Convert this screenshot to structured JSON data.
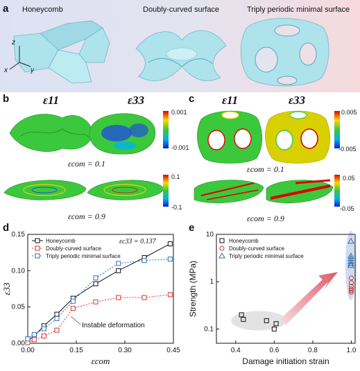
{
  "panel_a": {
    "label": "a",
    "titles": [
      "Honeycomb",
      "Doubly-curved surface",
      "Triply periodic minimal surface"
    ],
    "axis_labels": [
      "z",
      "x",
      "y"
    ]
  },
  "panel_b": {
    "label": "b",
    "eps11": "ε11",
    "eps33": "ε33",
    "colorbar_top": [
      "0.001",
      "-0.001"
    ],
    "colorbar_bottom": [
      "0.1",
      "-0.1"
    ],
    "strain_1": "εcom = 0.1",
    "strain_2": "εcom = 0.9"
  },
  "panel_c": {
    "label": "c",
    "eps11": "ε11",
    "eps33": "ε33",
    "colorbar_top": [
      "0.005",
      "-0.005"
    ],
    "colorbar_bottom": [
      "0.05",
      "-0.05"
    ],
    "strain_1": "εcom = 0.1",
    "strain_2": "εcom = 0.9"
  },
  "colors": {
    "honeycomb": "#111111",
    "doubly": "#d9342b",
    "tpms": "#2e6db4",
    "surface": "#aee3ec",
    "green": "#3cc83c",
    "blue_band": "#dfe5f3",
    "pink_band": "#f6dde0"
  },
  "chart_data": [
    {
      "type": "line",
      "panel": "d",
      "xlabel": "εcom",
      "ylabel": "ε33",
      "xlim": [
        0,
        0.45
      ],
      "ylim": [
        0,
        0.15
      ],
      "xticks": [
        "0.00",
        "0.15",
        "0.30",
        "0.45"
      ],
      "yticks": [
        "0.00",
        "0.05",
        "0.10",
        "0.15"
      ],
      "legend": "top-left",
      "annotation": "εc33 = 0.137",
      "annotation2": "Instable deformation",
      "series": [
        {
          "name": "Honeycomb",
          "marker": "square",
          "line": "solid",
          "x": [
            0.0,
            0.02,
            0.05,
            0.09,
            0.14,
            0.21,
            0.28,
            0.36,
            0.44
          ],
          "y": [
            0.003,
            0.01,
            0.024,
            0.04,
            0.062,
            0.082,
            0.1,
            0.118,
            0.137
          ]
        },
        {
          "name": "Doubly-curved surface",
          "marker": "circle-square",
          "line": "dotted",
          "x": [
            0.0,
            0.02,
            0.05,
            0.09,
            0.14,
            0.21,
            0.28,
            0.36,
            0.44
          ],
          "y": [
            0.001,
            0.005,
            0.01,
            0.018,
            0.048,
            0.057,
            0.063,
            0.063,
            0.067
          ]
        },
        {
          "name": "Triply periodic minimal surface",
          "marker": "square",
          "line": "dotted",
          "x": [
            0.0,
            0.02,
            0.05,
            0.09,
            0.14,
            0.21,
            0.28,
            0.36,
            0.44
          ],
          "y": [
            0.006,
            0.012,
            0.02,
            0.034,
            0.058,
            0.09,
            0.11,
            0.114,
            0.116
          ]
        }
      ]
    },
    {
      "type": "scatter",
      "panel": "e",
      "xlabel": "Damage initiation strain",
      "ylabel": "Strength (MPa)",
      "xlim": [
        0.3,
        1.02
      ],
      "ylim": [
        0.05,
        10
      ],
      "yscale": "log",
      "xticks": [
        "0.4",
        "0.6",
        "0.8",
        "1.0"
      ],
      "yticks": [
        "0.1",
        "1",
        "10"
      ],
      "legend": "top-left",
      "series": [
        {
          "name": "Honeycomb",
          "marker": "square",
          "x": [
            0.43,
            0.44,
            0.56,
            0.6,
            0.61
          ],
          "y": [
            0.2,
            0.16,
            0.15,
            0.1,
            0.13
          ]
        },
        {
          "name": "Doubly-curved surface",
          "marker": "circle",
          "x": [
            1.0,
            1.0,
            1.0,
            1.0,
            1.0,
            1.0
          ],
          "y": [
            1.2,
            0.95,
            0.8,
            0.7,
            0.65,
            0.6
          ]
        },
        {
          "name": "Triply periodic minimal surface",
          "marker": "triangle",
          "x": [
            0.998,
            0.998,
            0.998,
            0.998,
            0.998,
            0.998
          ],
          "y": [
            7.2,
            3.5,
            3.1,
            2.7,
            2.4,
            2.2
          ]
        }
      ]
    }
  ]
}
